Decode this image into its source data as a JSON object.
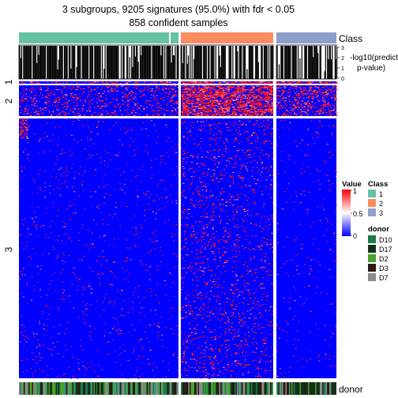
{
  "chart_data": {
    "type": "heatmap",
    "title": "3 subgroups, 9205 signatures (95.0%) with fdr < 0.05",
    "subtitle": "858 confident samples",
    "column_groups": [
      {
        "label": "1",
        "color": "#66C2A5"
      },
      {
        "label": "2",
        "color": "#FC8D62"
      },
      {
        "label": "3",
        "color": "#8DA0CB"
      }
    ],
    "row_groups": [
      "1",
      "2",
      "3"
    ],
    "annotations": {
      "class_label": "Class",
      "pvalue_label_line1": "-log10(predict",
      "pvalue_label_line2": "p-value)",
      "pvalue_ticks": [
        "0",
        "1",
        "2",
        "3"
      ],
      "donor_label": "donor"
    },
    "color_scale": {
      "title": "Value",
      "ticks": [
        "0",
        "0.5",
        "1"
      ],
      "low": "#0000FF",
      "mid": "#FFFFFF",
      "high": "#FF0000"
    },
    "legend_class": {
      "title": "Class",
      "items": [
        {
          "label": "1",
          "color": "#66C2A5"
        },
        {
          "label": "2",
          "color": "#FC8D62"
        },
        {
          "label": "3",
          "color": "#8DA0CB"
        }
      ]
    },
    "legend_donor": {
      "title": "donor",
      "items": [
        {
          "label": "D10",
          "color": "#1B7A4E"
        },
        {
          "label": "D17",
          "color": "#15301A"
        },
        {
          "label": "D2",
          "color": "#48A22C"
        },
        {
          "label": "D3",
          "color": "#2A1A12"
        },
        {
          "label": "D7",
          "color": "#8C8C8C"
        }
      ]
    }
  }
}
